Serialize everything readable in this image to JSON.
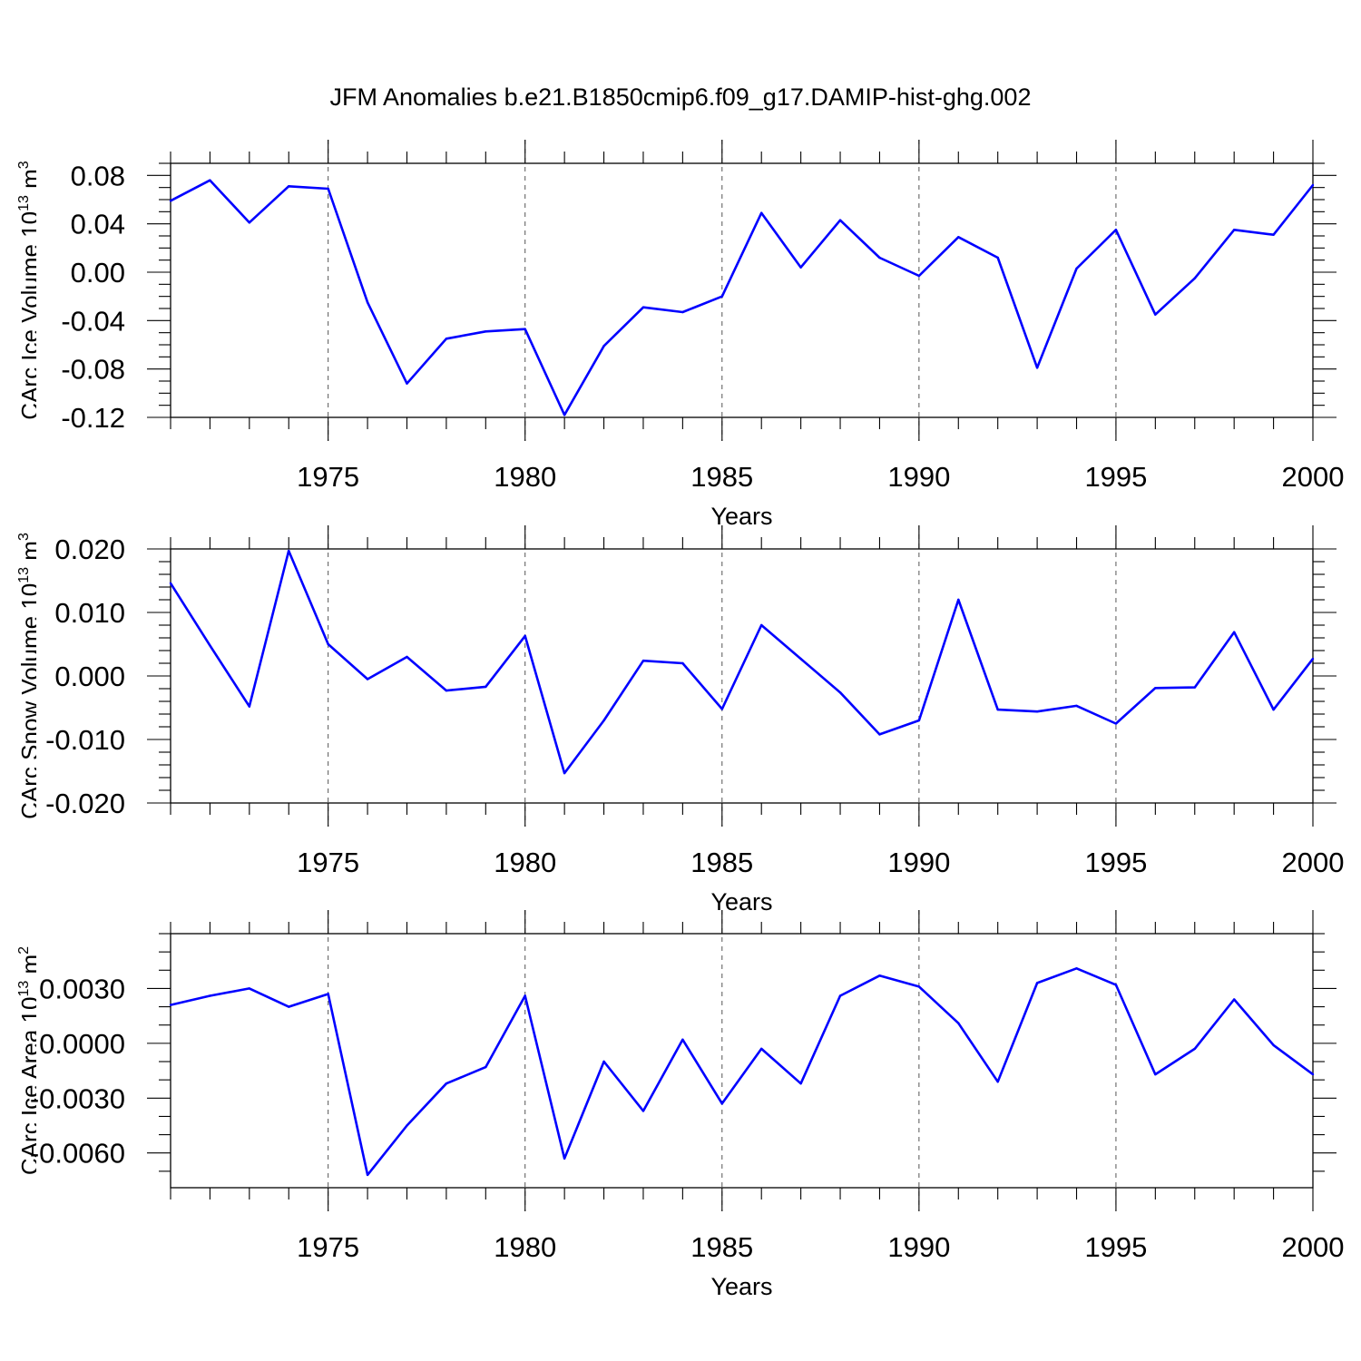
{
  "figure_title": "JFM Anomalies b.e21.B1850cmip6.f09_g17.DAMIP-hist-ghg.002",
  "colors": {
    "line": "#0000ff",
    "grid": "#555555",
    "axis": "#000000"
  },
  "chart_data": [
    {
      "type": "line",
      "title": "JFM Anomalies b.e21.B1850cmip6.f09_g17.DAMIP-hist-ghg.002",
      "xlabel": "Years",
      "ylabel": "CArc Ice Volume 10",
      "ylabel_sup": "13",
      "ylabel_unit": "m",
      "ylabel_unit_sup": "3",
      "xlim": [
        1971,
        2000
      ],
      "ylim": [
        -0.12,
        0.09
      ],
      "xticks": [
        1975,
        1980,
        1985,
        1990,
        1995,
        2000
      ],
      "xtick_labels": [
        "1975",
        "1980",
        "1985",
        "1990",
        "1995",
        "2000"
      ],
      "yticks": [
        0.08,
        0.04,
        0.0,
        -0.04,
        -0.08,
        -0.12
      ],
      "ytick_labels": [
        "0.08",
        "0.04",
        "0.00",
        "-0.04",
        "-0.08",
        "-0.12"
      ],
      "yminor_step": 0.01,
      "grid": "vertical dashed at major x ticks",
      "x": [
        1971,
        1972,
        1973,
        1974,
        1975,
        1976,
        1977,
        1978,
        1979,
        1980,
        1981,
        1982,
        1983,
        1984,
        1985,
        1986,
        1987,
        1988,
        1989,
        1990,
        1991,
        1992,
        1993,
        1994,
        1995,
        1996,
        1997,
        1998,
        1999,
        2000
      ],
      "values": [
        0.059,
        0.076,
        0.041,
        0.071,
        0.069,
        -0.025,
        -0.092,
        -0.055,
        -0.049,
        -0.047,
        -0.118,
        -0.061,
        -0.029,
        -0.033,
        -0.02,
        0.049,
        0.004,
        0.043,
        0.012,
        -0.003,
        0.029,
        0.012,
        -0.079,
        0.003,
        0.035,
        -0.035,
        -0.005,
        0.035,
        0.031,
        0.072
      ]
    },
    {
      "type": "line",
      "xlabel": "Years",
      "ylabel": "CArc Snow Volume 10",
      "ylabel_sup": "13",
      "ylabel_unit": "m",
      "ylabel_unit_sup": "3",
      "xlim": [
        1971,
        2000
      ],
      "ylim": [
        -0.02,
        0.02
      ],
      "xticks": [
        1975,
        1980,
        1985,
        1990,
        1995,
        2000
      ],
      "xtick_labels": [
        "1975",
        "1980",
        "1985",
        "1990",
        "1995",
        "2000"
      ],
      "yticks": [
        0.02,
        0.01,
        0.0,
        -0.01,
        -0.02
      ],
      "ytick_labels": [
        "0.020",
        "0.010",
        "0.000",
        "-0.010",
        "-0.020"
      ],
      "yminor_step": 0.002,
      "grid": "vertical dashed at major x ticks",
      "x": [
        1971,
        1972,
        1973,
        1974,
        1975,
        1976,
        1977,
        1978,
        1979,
        1980,
        1981,
        1982,
        1983,
        1984,
        1985,
        1986,
        1987,
        1988,
        1989,
        1990,
        1991,
        1992,
        1993,
        1994,
        1995,
        1996,
        1997,
        1998,
        1999,
        2000
      ],
      "values": [
        0.0146,
        0.0048,
        -0.0048,
        0.0197,
        0.005,
        -0.0005,
        0.003,
        -0.0023,
        -0.0017,
        0.0063,
        -0.0153,
        -0.007,
        0.0024,
        0.002,
        -0.0052,
        0.008,
        0.0027,
        -0.0026,
        -0.0092,
        -0.007,
        0.012,
        -0.0053,
        -0.0056,
        -0.0047,
        -0.0075,
        -0.0019,
        -0.0018,
        0.0069,
        -0.0053,
        0.0027
      ]
    },
    {
      "type": "line",
      "xlabel": "Years",
      "ylabel": "CArc Ice Area 10",
      "ylabel_sup": "13",
      "ylabel_unit": "m",
      "ylabel_unit_sup": "2",
      "xlim": [
        1971,
        2000
      ],
      "ylim": [
        -0.0079,
        0.006
      ],
      "xticks": [
        1975,
        1980,
        1985,
        1990,
        1995,
        2000
      ],
      "xtick_labels": [
        "1975",
        "1980",
        "1985",
        "1990",
        "1995",
        "2000"
      ],
      "yticks": [
        0.003,
        0.0,
        -0.003,
        -0.006
      ],
      "ytick_labels": [
        "0.0030",
        "0.0000",
        "-0.0030",
        "-0.0060"
      ],
      "yminor_step": 0.001,
      "grid": "vertical dashed at major x ticks",
      "x": [
        1971,
        1972,
        1973,
        1974,
        1975,
        1976,
        1977,
        1978,
        1979,
        1980,
        1981,
        1982,
        1983,
        1984,
        1985,
        1986,
        1987,
        1988,
        1989,
        1990,
        1991,
        1992,
        1993,
        1994,
        1995,
        1996,
        1997,
        1998,
        1999,
        2000
      ],
      "values": [
        0.0021,
        0.0026,
        0.003,
        0.002,
        0.0027,
        -0.0072,
        -0.0045,
        -0.0022,
        -0.0013,
        0.0026,
        -0.0063,
        -0.001,
        -0.0037,
        0.0002,
        -0.0033,
        -0.0003,
        -0.0022,
        0.0026,
        0.0037,
        0.0031,
        0.0011,
        -0.0021,
        0.0033,
        0.0041,
        0.0032,
        -0.0017,
        -0.0003,
        0.0024,
        -0.0001,
        -0.0017
      ]
    }
  ]
}
